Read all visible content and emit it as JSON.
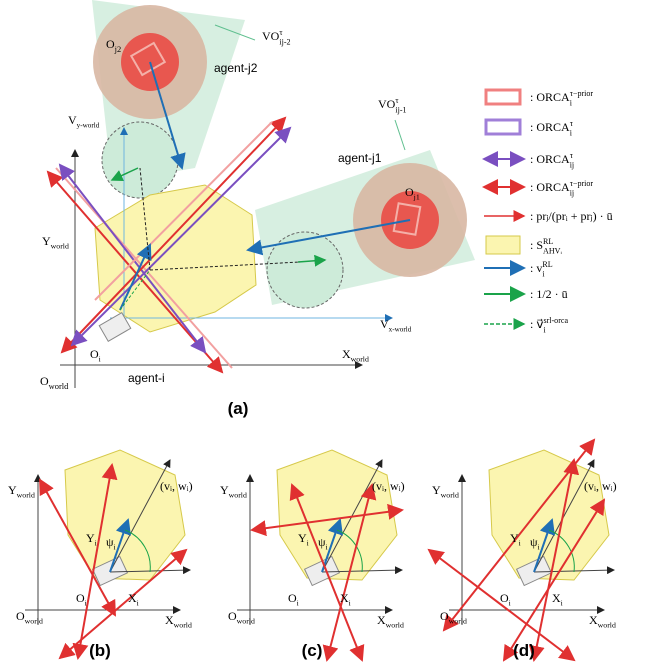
{
  "panel_a": {
    "labels": [
      {
        "base": "VO",
        "sup": "τ",
        "sub": "ij-2"
      },
      {
        "base": "O",
        "sub": "j2"
      },
      {
        "base": "agent-j2"
      },
      {
        "base": "V",
        "sub": "y-world"
      },
      {
        "base": "VO",
        "sup": "τ",
        "sub": "ij-1"
      },
      {
        "base": "agent-j1"
      },
      {
        "base": "O",
        "sub": "j1"
      },
      {
        "base": "Y",
        "sub": "world"
      },
      {
        "base": "V",
        "sub": "x-world"
      },
      {
        "base": "O",
        "sub": "i"
      },
      {
        "base": "agent-i"
      },
      {
        "base": "X",
        "sub": "world"
      },
      {
        "base": "O",
        "sub": "world"
      }
    ],
    "caption": "(a)"
  },
  "legend": [
    {
      "base": ": ORCA",
      "sup": "τ−prior",
      "sub": "i"
    },
    {
      "base": ": ORCA",
      "sup": "τ",
      "sub": "i"
    },
    {
      "base": ": ORCA",
      "sup": "τ",
      "sub": "ij"
    },
    {
      "base": ": ORCA",
      "sup": "τ−prior",
      "sub": "ij"
    },
    {
      "base": ": prⱼ/(prᵢ + prⱼ) · ū"
    },
    {
      "base": ": S",
      "sup": "RL",
      "sub": "AHVᵢ"
    },
    {
      "base": ": v",
      "sup": "RL",
      "sub": "i"
    },
    {
      "base": ": 1/2 · ū"
    },
    {
      "base": ": v⃗",
      "sup": "srl-orca",
      "sub": "i"
    }
  ],
  "panels": [
    {
      "caption": "(b)",
      "labels": [
        {
          "base": "Y",
          "sub": "world"
        },
        {
          "base": "(vᵢ, wᵢ)"
        },
        {
          "base": "Y",
          "sub": "i"
        },
        {
          "base": "ψ",
          "sub": "i"
        },
        {
          "base": "O",
          "sub": "i"
        },
        {
          "base": "X",
          "sub": "i"
        },
        {
          "base": "O",
          "sub": "world"
        },
        {
          "base": "X",
          "sub": "world"
        }
      ]
    },
    {
      "caption": "(c)",
      "labels": [
        {
          "base": "Y",
          "sub": "world"
        },
        {
          "base": "(vᵢ, wᵢ)"
        },
        {
          "base": "Y",
          "sub": "i"
        },
        {
          "base": "ψ",
          "sub": "i"
        },
        {
          "base": "O",
          "sub": "i"
        },
        {
          "base": "X",
          "sub": "i"
        },
        {
          "base": "O",
          "sub": "world"
        },
        {
          "base": "X",
          "sub": "world"
        }
      ]
    },
    {
      "caption": "(d)",
      "labels": [
        {
          "base": "Y",
          "sub": "world"
        },
        {
          "base": "(vᵢ, wᵢ)"
        },
        {
          "base": "Y",
          "sub": "i"
        },
        {
          "base": "ψ",
          "sub": "i"
        },
        {
          "base": "O",
          "sub": "i"
        },
        {
          "base": "X",
          "sub": "i"
        },
        {
          "base": "O",
          "sub": "world"
        },
        {
          "base": "X",
          "sub": "world"
        }
      ]
    }
  ]
}
